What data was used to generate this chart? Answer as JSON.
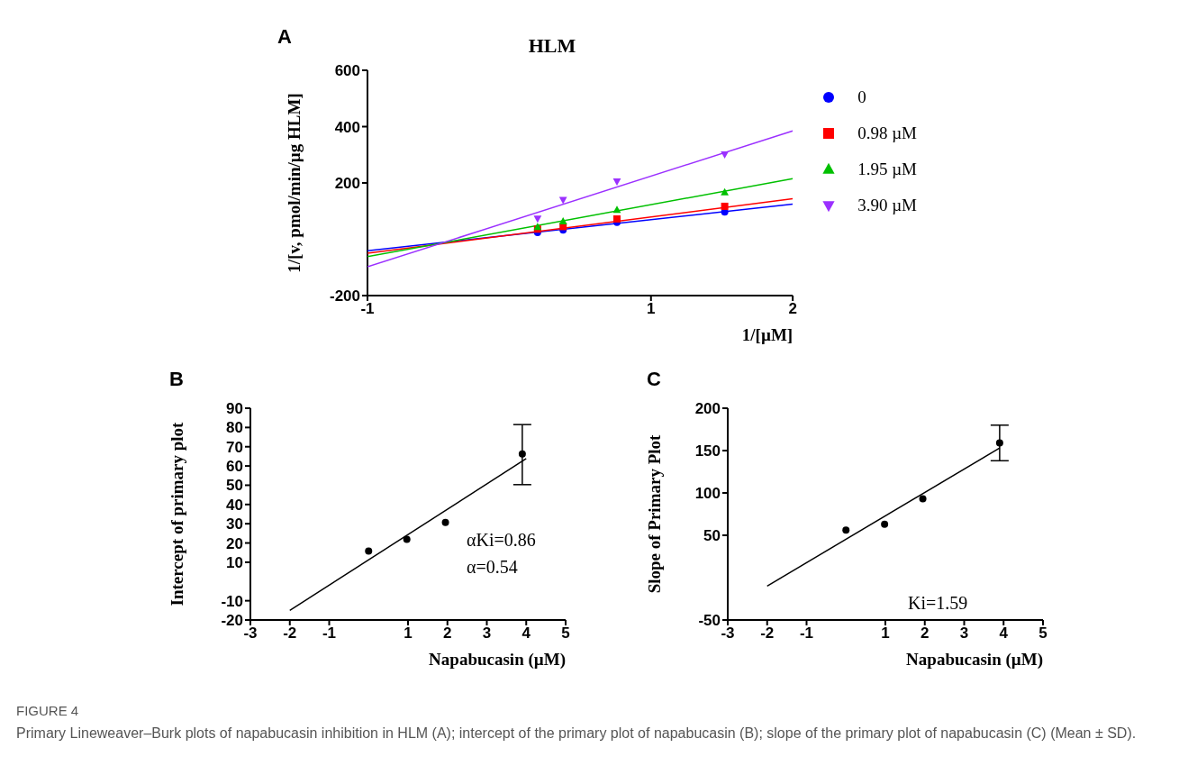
{
  "chart_data": [
    {
      "type": "scatter",
      "title": "HLM",
      "xlabel": "1/[µM]",
      "ylabel": "1/[v, pmol/min/µg HLM]",
      "annotations": [
        "A"
      ],
      "legend": "right",
      "xlim": [
        -1,
        2
      ],
      "xticks": [
        -1,
        1,
        2
      ],
      "ylim": [
        -200,
        600
      ],
      "yticks": [
        -200,
        200,
        400,
        600
      ],
      "series": [
        {
          "type": "line",
          "color": "#0000ff",
          "x": [
            -1,
            2
          ],
          "values": [
            -41,
            125
          ]
        },
        {
          "type": "line",
          "color": "#ff0000",
          "x": [
            -1,
            2
          ],
          "values": [
            -50,
            144
          ]
        },
        {
          "type": "line",
          "color": "#00c000",
          "x": [
            -1,
            2
          ],
          "values": [
            -62,
            215
          ]
        },
        {
          "type": "line",
          "color": "#9b30ff",
          "x": [
            -1,
            2
          ],
          "values": [
            -98,
            385
          ]
        },
        {
          "name": "0",
          "color": "#0000ff",
          "marker": "circle",
          "x": [
            0.2,
            0.38,
            0.76,
            1.52
          ],
          "values": [
            24,
            33,
            60,
            97
          ]
        },
        {
          "name": "0.98 µM",
          "color": "#ff0000",
          "marker": "square",
          "x": [
            0.2,
            0.38,
            0.76,
            1.52
          ],
          "values": [
            36,
            45,
            72,
            117
          ]
        },
        {
          "name": "1.95 µM",
          "color": "#00c000",
          "marker": "triangle",
          "x": [
            0.2,
            0.38,
            0.76,
            1.52
          ],
          "values": [
            43,
            63,
            104,
            166
          ]
        },
        {
          "name": "3.90 µM",
          "color": "#9b30ff",
          "marker": "triangle-down",
          "x": [
            0.2,
            0.38,
            0.76,
            1.52
          ],
          "values": [
            74,
            140,
            206,
            302
          ]
        }
      ]
    },
    {
      "type": "scatter",
      "xlabel": "Napabucasin (µM)",
      "ylabel": "Intercept of primary plot",
      "annotations": [
        "B",
        "αKi=0.86",
        "α=0.54"
      ],
      "xlim": [
        -3,
        5
      ],
      "xticks": [
        -3,
        -2,
        -1,
        1,
        2,
        3,
        4,
        5
      ],
      "ylim": [
        -20,
        90
      ],
      "yticks": [
        -20,
        -10,
        10,
        20,
        30,
        40,
        50,
        60,
        70,
        80,
        90
      ],
      "series": [
        {
          "type": "line",
          "color": "#000000",
          "x": [
            -2,
            4
          ],
          "values": [
            -15,
            63.8
          ]
        },
        {
          "color": "#000000",
          "marker": "circle",
          "x": [
            0,
            0.97,
            1.95,
            3.9
          ],
          "values": [
            15.8,
            21.9,
            30.7,
            66.2
          ],
          "errors": [
            null,
            null,
            null,
            [
              50.3,
              81.5
            ]
          ]
        }
      ]
    },
    {
      "type": "scatter",
      "xlabel": "Napabucasin (µM)",
      "ylabel": "Slope of Primary Plot",
      "annotations": [
        "C",
        "Ki=1.59"
      ],
      "xlim": [
        -3,
        5
      ],
      "xticks": [
        -3,
        -2,
        -1,
        1,
        2,
        3,
        4,
        5
      ],
      "ylim": [
        -50,
        200
      ],
      "yticks": [
        -50,
        50,
        100,
        150,
        200
      ],
      "series": [
        {
          "type": "line",
          "color": "#000000",
          "x": [
            -2,
            3.9
          ],
          "values": [
            -10,
            153
          ]
        },
        {
          "color": "#000000",
          "marker": "circle",
          "x": [
            0,
            0.98,
            1.95,
            3.9
          ],
          "values": [
            56,
            63,
            93,
            159
          ],
          "errors": [
            null,
            null,
            null,
            [
              138,
              180
            ]
          ]
        }
      ]
    },
    {
      "type": "other",
      "annotations": [
        "FIGURE 4",
        "Primary Lineweaver–Burk plots of napabucasin inhibition in HLM (A); intercept of the primary plot of napabucasin (B); slope of the primary plot of napabucasin (C) (Mean ± SD)."
      ]
    }
  ]
}
